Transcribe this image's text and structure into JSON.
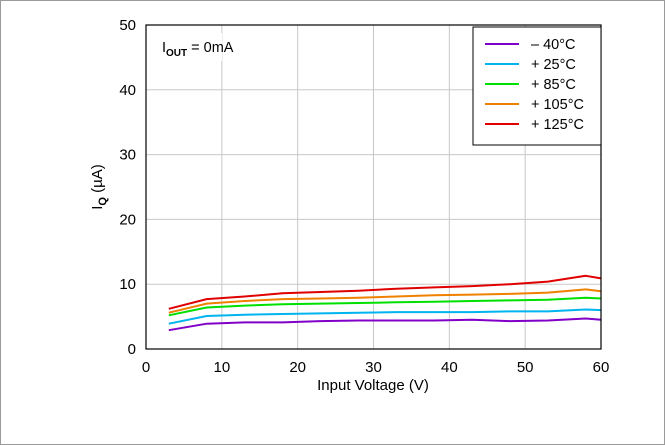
{
  "chart_data": {
    "type": "line",
    "title": "",
    "annotation": {
      "main": "I",
      "sub": "OUT",
      "rest": " = 0mA"
    },
    "xlabel": "Input Voltage (V)",
    "ylabel": {
      "main": "I",
      "sub": "Q",
      "rest": " (µA)"
    },
    "xlim": [
      0,
      60
    ],
    "ylim": [
      0,
      50
    ],
    "xticks": [
      0,
      10,
      20,
      30,
      40,
      50,
      60
    ],
    "yticks": [
      0,
      10,
      20,
      30,
      40,
      50
    ],
    "grid": true,
    "legend_position": "top-right",
    "x": [
      3,
      8,
      13,
      18,
      23,
      28,
      33,
      38,
      43,
      48,
      53,
      58,
      60
    ],
    "series": [
      {
        "name": "– 40°C",
        "color": "#8000c8",
        "values": [
          2.9,
          3.9,
          4.1,
          4.1,
          4.3,
          4.4,
          4.4,
          4.4,
          4.5,
          4.3,
          4.4,
          4.7,
          4.5
        ]
      },
      {
        "name": "+ 25°C",
        "color": "#00b4f0",
        "values": [
          3.9,
          5.1,
          5.3,
          5.4,
          5.5,
          5.6,
          5.7,
          5.7,
          5.7,
          5.8,
          5.8,
          6.1,
          6.0
        ]
      },
      {
        "name": "+ 85°C",
        "color": "#00e000",
        "values": [
          5.2,
          6.4,
          6.7,
          6.9,
          7.0,
          7.1,
          7.2,
          7.3,
          7.4,
          7.5,
          7.6,
          7.9,
          7.8
        ]
      },
      {
        "name": "+ 105°C",
        "color": "#f08000",
        "values": [
          5.6,
          7.0,
          7.4,
          7.7,
          7.8,
          7.9,
          8.1,
          8.3,
          8.4,
          8.5,
          8.7,
          9.2,
          8.9
        ]
      },
      {
        "name": "+ 125°C",
        "color": "#e00000",
        "values": [
          6.2,
          7.7,
          8.1,
          8.6,
          8.8,
          9.0,
          9.3,
          9.5,
          9.7,
          10.0,
          10.4,
          11.3,
          10.9
        ]
      }
    ]
  }
}
